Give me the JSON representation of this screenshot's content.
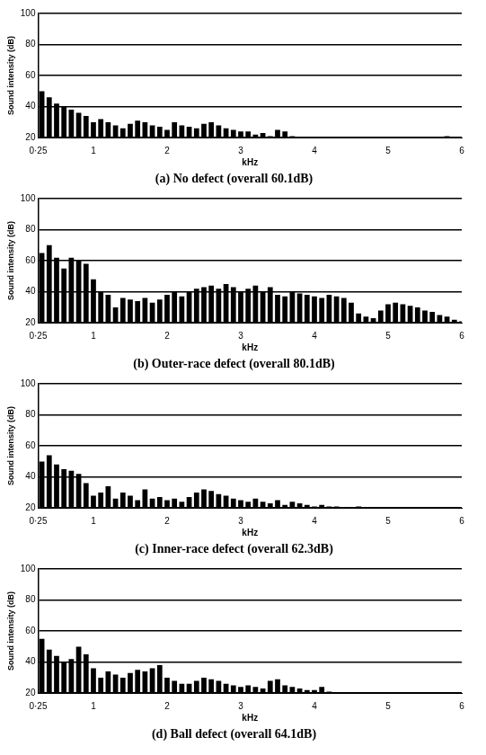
{
  "chart_data": [
    {
      "type": "bar",
      "title": "(a) No defect (overall 60.1dB)",
      "x_label": "kHz",
      "y_label": "Sound intensity (dB)",
      "x": [
        0.3,
        0.4,
        0.5,
        0.6,
        0.7,
        0.8,
        0.9,
        1.0,
        1.1,
        1.2,
        1.3,
        1.4,
        1.5,
        1.6,
        1.7,
        1.8,
        1.9,
        2.0,
        2.1,
        2.2,
        2.3,
        2.4,
        2.5,
        2.6,
        2.7,
        2.8,
        2.9,
        3.0,
        3.1,
        3.2,
        3.3,
        3.4,
        3.5,
        3.6,
        3.7,
        3.8,
        3.9,
        4.0,
        4.1,
        4.2,
        4.3,
        4.4,
        4.5,
        4.6,
        4.7,
        4.8,
        4.9,
        5.0,
        5.1,
        5.2,
        5.3,
        5.4,
        5.5,
        5.6,
        5.7,
        5.8,
        5.9,
        6.0
      ],
      "values": [
        50,
        46,
        42,
        40,
        38,
        36,
        34,
        30,
        32,
        30,
        28,
        26,
        29,
        31,
        30,
        28,
        27,
        25,
        30,
        28,
        27,
        26,
        29,
        30,
        28,
        26,
        25,
        24,
        24,
        22,
        23,
        21,
        25,
        24,
        21,
        20,
        20,
        20,
        20,
        20,
        20,
        20,
        20,
        20,
        20,
        20,
        20,
        20,
        20,
        20,
        20,
        20,
        20,
        20,
        20,
        21,
        20,
        20
      ],
      "xlim": [
        0.25,
        6
      ],
      "ylim": [
        20,
        100
      ],
      "xticks": [
        {
          "value": 0.25,
          "label": "0·25"
        },
        1,
        2,
        3,
        4,
        5,
        6
      ],
      "yticks": [
        20,
        40,
        60,
        80,
        100
      ],
      "grid": true,
      "color": "#000000"
    },
    {
      "type": "bar",
      "title": "(b) Outer-race defect (overall 80.1dB)",
      "x_label": "kHz",
      "y_label": "Sound intensity (dB)",
      "x": [
        0.3,
        0.4,
        0.5,
        0.6,
        0.7,
        0.8,
        0.9,
        1.0,
        1.1,
        1.2,
        1.3,
        1.4,
        1.5,
        1.6,
        1.7,
        1.8,
        1.9,
        2.0,
        2.1,
        2.2,
        2.3,
        2.4,
        2.5,
        2.6,
        2.7,
        2.8,
        2.9,
        3.0,
        3.1,
        3.2,
        3.3,
        3.4,
        3.5,
        3.6,
        3.7,
        3.8,
        3.9,
        4.0,
        4.1,
        4.2,
        4.3,
        4.4,
        4.5,
        4.6,
        4.7,
        4.8,
        4.9,
        5.0,
        5.1,
        5.2,
        5.3,
        5.4,
        5.5,
        5.6,
        5.7,
        5.8,
        5.9,
        6.0
      ],
      "values": [
        65,
        70,
        62,
        55,
        62,
        60,
        58,
        48,
        40,
        38,
        30,
        36,
        35,
        34,
        36,
        33,
        35,
        38,
        40,
        37,
        40,
        42,
        43,
        44,
        42,
        45,
        43,
        40,
        42,
        44,
        40,
        43,
        38,
        37,
        40,
        39,
        38,
        37,
        36,
        38,
        37,
        36,
        33,
        26,
        24,
        23,
        28,
        32,
        33,
        32,
        31,
        30,
        28,
        27,
        25,
        24,
        22,
        21
      ],
      "xlim": [
        0.25,
        6
      ],
      "ylim": [
        20,
        100
      ],
      "xticks": [
        {
          "value": 0.25,
          "label": "0·25"
        },
        1,
        2,
        3,
        4,
        5,
        6
      ],
      "yticks": [
        20,
        40,
        60,
        80,
        100
      ],
      "grid": true,
      "color": "#000000"
    },
    {
      "type": "bar",
      "title": "(c) Inner-race defect (overall 62.3dB)",
      "x_label": "kHz",
      "y_label": "Sound intensity (dB)",
      "x": [
        0.3,
        0.4,
        0.5,
        0.6,
        0.7,
        0.8,
        0.9,
        1.0,
        1.1,
        1.2,
        1.3,
        1.4,
        1.5,
        1.6,
        1.7,
        1.8,
        1.9,
        2.0,
        2.1,
        2.2,
        2.3,
        2.4,
        2.5,
        2.6,
        2.7,
        2.8,
        2.9,
        3.0,
        3.1,
        3.2,
        3.3,
        3.4,
        3.5,
        3.6,
        3.7,
        3.8,
        3.9,
        4.0,
        4.1,
        4.2,
        4.3,
        4.4,
        4.5,
        4.6,
        4.7,
        4.8,
        4.9,
        5.0,
        5.1,
        5.2,
        5.3,
        5.4,
        5.5,
        5.6,
        5.7,
        5.8,
        5.9,
        6.0
      ],
      "values": [
        50,
        54,
        48,
        45,
        44,
        42,
        36,
        28,
        30,
        34,
        26,
        30,
        28,
        25,
        32,
        26,
        27,
        25,
        26,
        24,
        27,
        30,
        32,
        31,
        29,
        28,
        26,
        25,
        24,
        26,
        24,
        23,
        25,
        22,
        24,
        23,
        22,
        21,
        22,
        21,
        21,
        20,
        20,
        21,
        20,
        20,
        20,
        20,
        20,
        20,
        20,
        20,
        20,
        20,
        20,
        20,
        20,
        20
      ],
      "xlim": [
        0.25,
        6
      ],
      "ylim": [
        20,
        100
      ],
      "xticks": [
        {
          "value": 0.25,
          "label": "0·25"
        },
        1,
        2,
        3,
        4,
        5,
        6
      ],
      "yticks": [
        20,
        40,
        60,
        80,
        100
      ],
      "grid": true,
      "color": "#000000"
    },
    {
      "type": "bar",
      "title": "(d) Ball defect (overall 64.1dB)",
      "x_label": "kHz",
      "y_label": "Sound intensity (dB)",
      "x": [
        0.3,
        0.4,
        0.5,
        0.6,
        0.7,
        0.8,
        0.9,
        1.0,
        1.1,
        1.2,
        1.3,
        1.4,
        1.5,
        1.6,
        1.7,
        1.8,
        1.9,
        2.0,
        2.1,
        2.2,
        2.3,
        2.4,
        2.5,
        2.6,
        2.7,
        2.8,
        2.9,
        3.0,
        3.1,
        3.2,
        3.3,
        3.4,
        3.5,
        3.6,
        3.7,
        3.8,
        3.9,
        4.0,
        4.1,
        4.2,
        4.3,
        4.4,
        4.5,
        4.6,
        4.7,
        4.8,
        4.9,
        5.0,
        5.1,
        5.2,
        5.3,
        5.4,
        5.5,
        5.6,
        5.7,
        5.8,
        5.9,
        6.0
      ],
      "values": [
        55,
        48,
        44,
        40,
        42,
        50,
        45,
        36,
        30,
        34,
        32,
        30,
        33,
        35,
        34,
        36,
        38,
        30,
        28,
        26,
        26,
        28,
        30,
        29,
        28,
        26,
        25,
        24,
        25,
        24,
        23,
        28,
        29,
        25,
        24,
        23,
        22,
        22,
        24,
        21,
        20,
        20,
        20,
        20,
        20,
        20,
        20,
        20,
        20,
        20,
        20,
        20,
        20,
        20,
        20,
        20,
        20,
        20
      ],
      "xlim": [
        0.25,
        6
      ],
      "ylim": [
        20,
        100
      ],
      "xticks": [
        {
          "value": 0.25,
          "label": "0·25"
        },
        1,
        2,
        3,
        4,
        5,
        6
      ],
      "yticks": [
        20,
        40,
        60,
        80,
        100
      ],
      "grid": true,
      "color": "#000000"
    }
  ]
}
